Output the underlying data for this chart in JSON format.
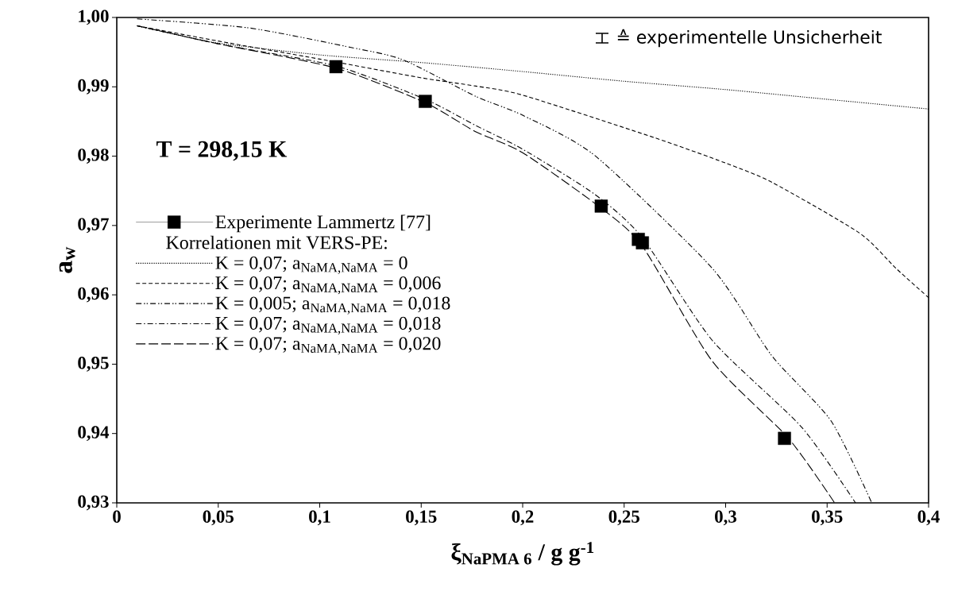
{
  "chart_data": {
    "type": "line",
    "xlabel": "ξ$_{NaPMA 6}$ / g g$^{-1}$",
    "ylabel": "a$_{w}$",
    "legend_title": "Korrelationen mit VERS-PE:",
    "legend": "left",
    "annotations": [
      "T = 298,15 K",
      "≙ experimentelle Unsicherheit"
    ],
    "xlim": [
      0,
      0.4
    ],
    "ylim": [
      0.93,
      1.0
    ],
    "xticks": [
      0,
      {
        "value": 0.05,
        "label": "0,05"
      },
      {
        "value": 0.1,
        "label": "0,1"
      },
      {
        "value": 0.15,
        "label": "0,15"
      },
      {
        "value": 0.2,
        "label": "0,2"
      },
      {
        "value": 0.25,
        "label": "0,25"
      },
      {
        "value": 0.3,
        "label": "0,3"
      },
      {
        "value": 0.35,
        "label": "0,35"
      },
      {
        "value": 0.4,
        "label": "0,4"
      }
    ],
    "yticks": [
      {
        "value": 0.93,
        "label": "0,93"
      },
      {
        "value": 0.94,
        "label": "0,94"
      },
      {
        "value": 0.95,
        "label": "0,95"
      },
      {
        "value": 0.96,
        "label": "0,96"
      },
      {
        "value": 0.97,
        "label": "0,97"
      },
      {
        "value": 0.98,
        "label": "0,98"
      },
      {
        "value": 0.99,
        "label": "0,99"
      },
      {
        "value": 1.0,
        "label": "1,00"
      }
    ],
    "grid": false,
    "series": [
      {
        "name": "Experimente Lammertz [77]",
        "type": "scatter",
        "marker": "square",
        "color": "#000000",
        "x": [
          0.108,
          0.152,
          0.2387,
          0.257,
          0.259,
          0.329
        ],
        "values": [
          0.9929,
          0.9879,
          0.9728,
          0.968,
          0.9675,
          0.9393
        ]
      },
      {
        "name": "K = 0,07;  a$_{NaMA,NaMA}$ = 0",
        "line_style": "dotted",
        "color": "#000000",
        "x": [
          0.01,
          0.03,
          0.05,
          0.1,
          0.15,
          0.2,
          0.25,
          0.3,
          0.35,
          0.4
        ],
        "values": [
          0.9988,
          0.9975,
          0.9963,
          0.9946,
          0.9935,
          0.9922,
          0.9908,
          0.9896,
          0.9882,
          0.9868
        ]
      },
      {
        "name": "K = 0,07;  a$_{NaMA,NaMA}$ = 0,006",
        "line_style": "dashed",
        "color": "#000000",
        "x": [
          0.01,
          0.05,
          0.1,
          0.15,
          0.177,
          0.2,
          0.2646,
          0.3,
          0.323,
          0.366,
          0.384,
          0.4
        ],
        "values": [
          0.9988,
          0.9966,
          0.994,
          0.9913,
          0.9901,
          0.9888,
          0.9827,
          0.979,
          0.9762,
          0.9689,
          0.9638,
          0.9596
        ]
      },
      {
        "name": "K = 0,005;  a$_{NaMA,NaMA}$ = 0,018",
        "line_style": "dashdotdotted",
        "color": "#000000",
        "x": [
          0.01,
          0.065,
          0.115,
          0.141,
          0.177,
          0.2,
          0.2355,
          0.2935,
          0.3228,
          0.352,
          0.372
        ],
        "values": [
          0.9998,
          0.9985,
          0.9957,
          0.9939,
          0.9886,
          0.9859,
          0.9801,
          0.9638,
          0.9512,
          0.9418,
          0.93
        ]
      },
      {
        "name": "K = 0,07;  a$_{NaMA,NaMA}$ = 0,018",
        "line_style": "dashdotted",
        "color": "#000000",
        "x": [
          0.01,
          0.05,
          0.108,
          0.152,
          0.177,
          0.2,
          0.2355,
          0.2588,
          0.2935,
          0.3375,
          0.364
        ],
        "values": [
          0.9988,
          0.9962,
          0.993,
          0.9882,
          0.9844,
          0.981,
          0.9745,
          0.9683,
          0.9534,
          0.9409,
          0.93
        ]
      },
      {
        "name": "K = 0,07;  a$_{NaMA,NaMA}$ = 0,020",
        "line_style": "longdashed",
        "color": "#000000",
        "x": [
          0.01,
          0.05,
          0.108,
          0.152,
          0.177,
          0.2,
          0.2387,
          0.259,
          0.2935,
          0.331,
          0.3537
        ],
        "values": [
          0.9988,
          0.9962,
          0.9927,
          0.9877,
          0.9835,
          0.9805,
          0.9725,
          0.967,
          0.9504,
          0.9393,
          0.93
        ]
      }
    ]
  }
}
